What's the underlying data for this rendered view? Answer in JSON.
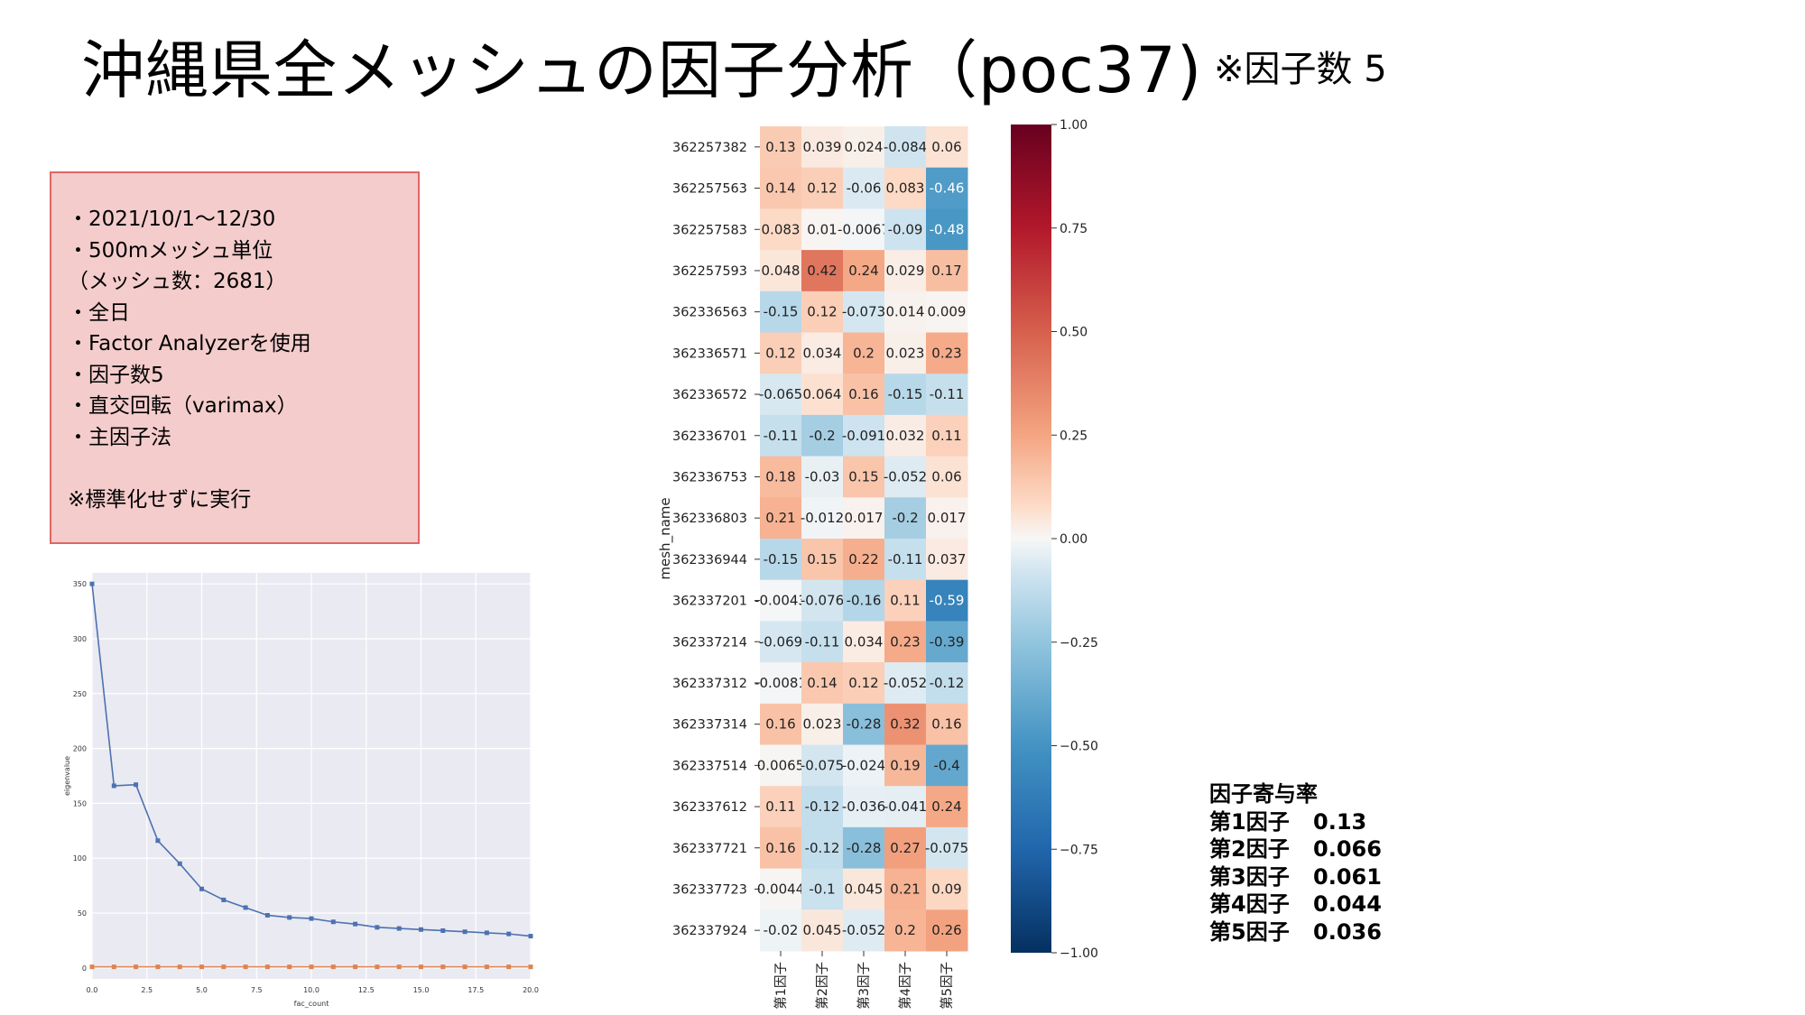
{
  "slide": {
    "title": "沖縄県全メッシュの因子分析（poc37)",
    "subtitle": "※因子数 5"
  },
  "info_lines": [
    "・2021/10/1〜12/30",
    "・500mメッシュ単位",
    "（メッシュ数：2681）",
    "・全日",
    "・Factor Analyzerを使用",
    "・因子数5",
    "・直交回転（varimax）",
    "・主因子法",
    "",
    "※標準化せずに実行"
  ],
  "contribution": {
    "title": "因子寄与率",
    "rows": [
      {
        "label": "第1因子",
        "value": "0.13"
      },
      {
        "label": "第2因子",
        "value": "0.066"
      },
      {
        "label": "第3因子",
        "value": "0.061"
      },
      {
        "label": "第4因子",
        "value": "0.044"
      },
      {
        "label": "第5因子",
        "value": "0.036"
      }
    ]
  },
  "colors": {
    "box_fill": "#f4cccc",
    "box_border": "#e06666",
    "line_blue": "#4c72b0",
    "line_orange": "#dd8452",
    "plot_bg": "#eaeaf2"
  },
  "chart_data": [
    {
      "type": "line",
      "xlabel": "fac_count",
      "ylabel": "eigenvalue",
      "xlim": [
        0,
        20
      ],
      "ylim": [
        -10,
        360
      ],
      "xticks": [
        "0.0",
        "2.5",
        "5.0",
        "7.5",
        "10.0",
        "12.5",
        "15.0",
        "17.5",
        "20.0"
      ],
      "yticks": [
        "0",
        "50",
        "100",
        "150",
        "200",
        "250",
        "300",
        "350"
      ],
      "grid": true,
      "x": [
        0,
        1,
        2,
        3,
        4,
        5,
        6,
        7,
        8,
        9,
        10,
        11,
        12,
        13,
        14,
        15,
        16,
        17,
        18,
        19,
        20
      ],
      "series": [
        {
          "color": "#4c72b0",
          "values": [
            350,
            166,
            167,
            116,
            95,
            72,
            62,
            55,
            48,
            46,
            45,
            42,
            40,
            37,
            36,
            35,
            34,
            33,
            32,
            31,
            29
          ]
        },
        {
          "color": "#dd8452",
          "values": [
            1,
            1,
            1,
            1,
            1,
            1,
            1,
            1,
            1,
            1,
            1,
            1,
            1,
            1,
            1,
            1,
            1,
            1,
            1,
            1,
            1
          ]
        }
      ]
    },
    {
      "type": "heatmap",
      "ylabel": "mesh_name",
      "columns": [
        "第1因子",
        "第2因子",
        "第3因子",
        "第4因子",
        "第5因子"
      ],
      "rows": [
        "362257382",
        "362257563",
        "362257583",
        "362257593",
        "362336563",
        "362336571",
        "362336572",
        "362336701",
        "362336753",
        "362336803",
        "362336944",
        "362337201",
        "362337214",
        "362337312",
        "362337314",
        "362337514",
        "362337612",
        "362337721",
        "362337723",
        "362337924"
      ],
      "values": [
        [
          0.13,
          0.039,
          0.024,
          -0.084,
          0.06
        ],
        [
          0.14,
          0.12,
          -0.06,
          0.083,
          -0.46
        ],
        [
          0.083,
          0.01,
          -0.0067,
          -0.09,
          -0.48
        ],
        [
          0.048,
          0.42,
          0.24,
          0.029,
          0.17
        ],
        [
          -0.15,
          0.12,
          -0.073,
          0.014,
          0.009
        ],
        [
          0.12,
          0.034,
          0.2,
          0.023,
          0.23
        ],
        [
          -0.065,
          0.064,
          0.16,
          -0.15,
          -0.11
        ],
        [
          -0.11,
          -0.2,
          -0.091,
          0.032,
          0.11
        ],
        [
          0.18,
          -0.03,
          0.15,
          -0.052,
          0.06
        ],
        [
          0.21,
          -0.012,
          0.017,
          -0.2,
          0.017
        ],
        [
          -0.15,
          0.15,
          0.22,
          -0.11,
          0.037
        ],
        [
          -0.0043,
          -0.076,
          -0.16,
          0.11,
          -0.59
        ],
        [
          -0.069,
          -0.11,
          0.034,
          0.23,
          -0.39
        ],
        [
          -0.0081,
          0.14,
          0.12,
          -0.052,
          -0.12
        ],
        [
          0.16,
          0.023,
          -0.28,
          0.32,
          0.16
        ],
        [
          0.0065,
          -0.075,
          -0.024,
          0.19,
          -0.4
        ],
        [
          0.11,
          -0.12,
          -0.036,
          -0.041,
          0.24
        ],
        [
          0.16,
          -0.12,
          -0.28,
          0.27,
          -0.075
        ],
        [
          0.0044,
          -0.1,
          0.045,
          0.21,
          0.09
        ],
        [
          -0.02,
          0.045,
          -0.052,
          0.2,
          0.26
        ]
      ],
      "labels": [
        [
          "0.13",
          "0.039",
          "0.024",
          "-0.084",
          "0.06"
        ],
        [
          "0.14",
          "0.12",
          "-0.06",
          "0.083",
          "-0.46"
        ],
        [
          "0.083",
          "0.01",
          "-0.0067",
          "-0.09",
          "-0.48"
        ],
        [
          "0.048",
          "0.42",
          "0.24",
          "0.029",
          "0.17"
        ],
        [
          "-0.15",
          "0.12",
          "-0.073",
          "0.014",
          "0.009"
        ],
        [
          "0.12",
          "0.034",
          "0.2",
          "0.023",
          "0.23"
        ],
        [
          "-0.065",
          "0.064",
          "0.16",
          "-0.15",
          "-0.11"
        ],
        [
          "-0.11",
          "-0.2",
          "-0.091",
          "0.032",
          "0.11"
        ],
        [
          "0.18",
          "-0.03",
          "0.15",
          "-0.052",
          "0.06"
        ],
        [
          "0.21",
          "-0.012",
          "0.017",
          "-0.2",
          "0.017"
        ],
        [
          "-0.15",
          "0.15",
          "0.22",
          "-0.11",
          "0.037"
        ],
        [
          "-0.0043",
          "-0.076",
          "-0.16",
          "0.11",
          "-0.59"
        ],
        [
          "-0.069",
          "-0.11",
          "0.034",
          "0.23",
          "-0.39"
        ],
        [
          "-0.0081",
          "0.14",
          "0.12",
          "-0.052",
          "-0.12"
        ],
        [
          "0.16",
          "0.023",
          "-0.28",
          "0.32",
          "0.16"
        ],
        [
          "0.0065",
          "-0.075",
          "-0.024",
          "0.19",
          "-0.4"
        ],
        [
          "0.11",
          "-0.12",
          "-0.036",
          "-0.041",
          "0.24"
        ],
        [
          "0.16",
          "-0.12",
          "-0.28",
          "0.27",
          "-0.075"
        ],
        [
          "0.0044",
          "-0.1",
          "0.045",
          "0.21",
          "0.09"
        ],
        [
          "-0.02",
          "0.045",
          "-0.052",
          "0.2",
          "0.26"
        ]
      ],
      "colorbar": {
        "range": [
          -1,
          1
        ],
        "ticks": [
          "1.00",
          "0.75",
          "0.50",
          "0.25",
          "0.00",
          "−0.25",
          "−0.50",
          "−0.75",
          "−1.00"
        ],
        "colormap": "RdBu_r"
      }
    }
  ]
}
